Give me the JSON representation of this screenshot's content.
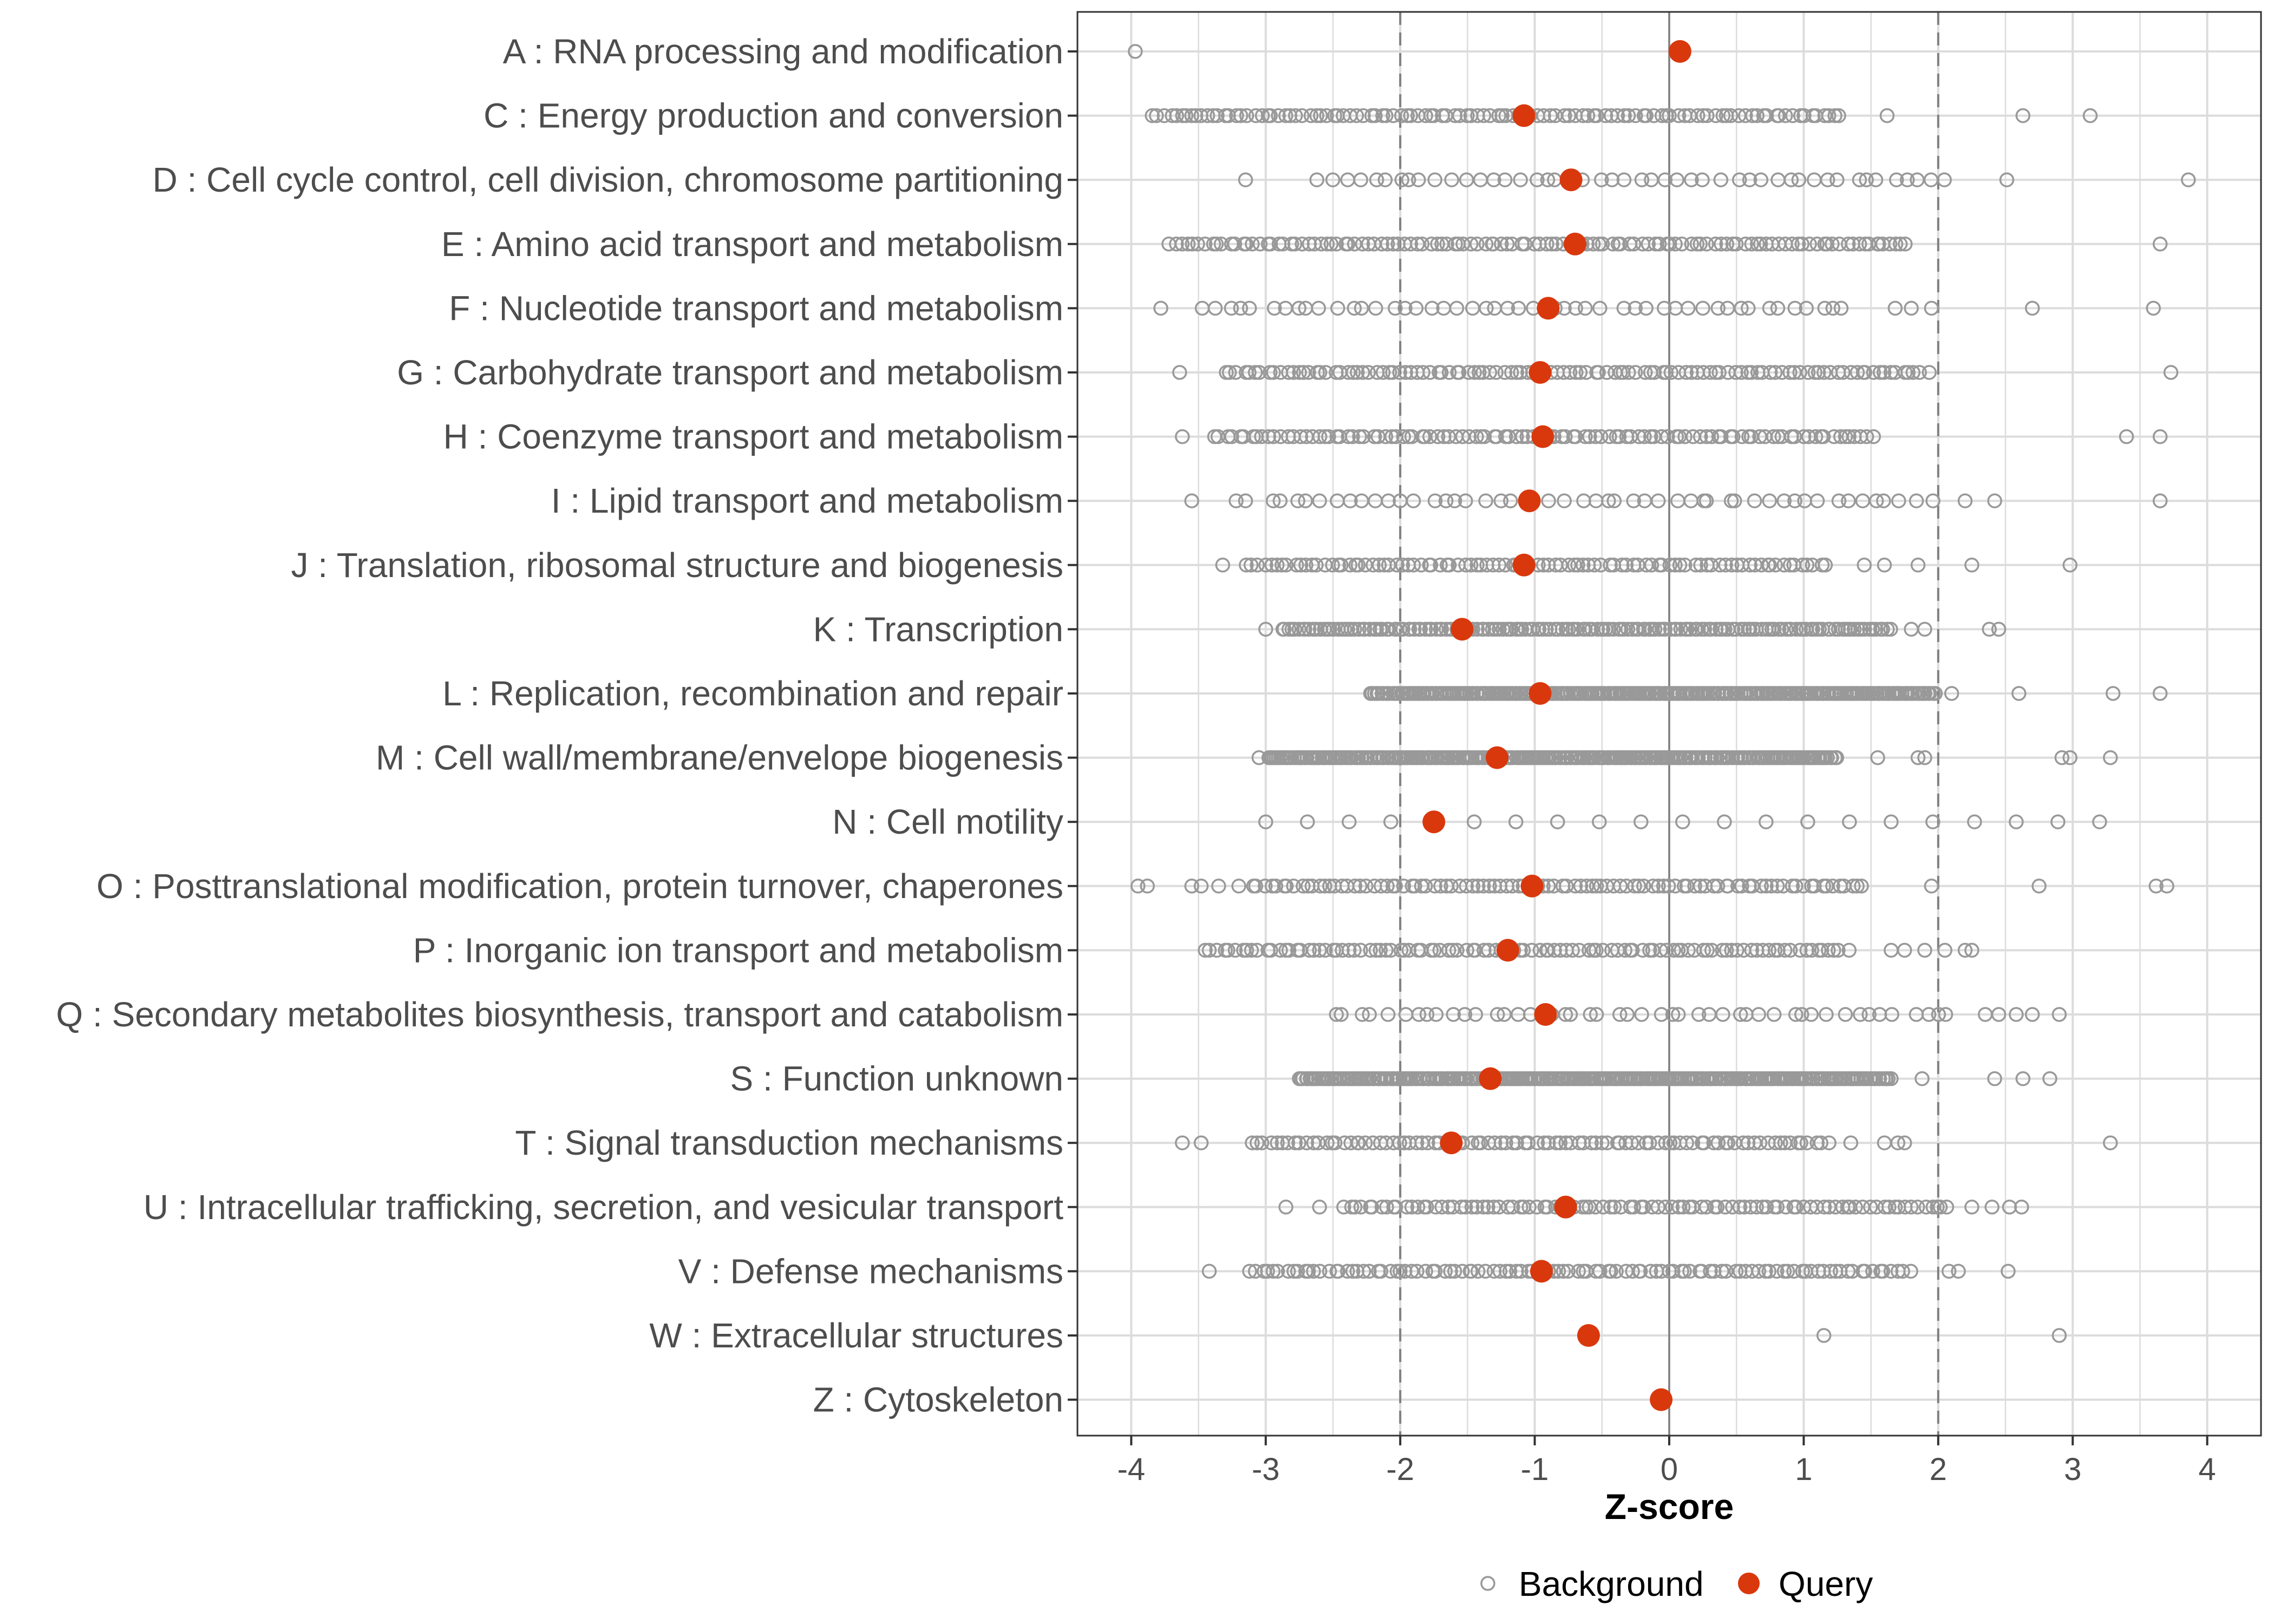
{
  "chart_data": {
    "type": "scatter",
    "title": "",
    "xlabel": "Z-score",
    "ylabel": "",
    "xlim": [
      -4.4,
      4.4
    ],
    "x_ticks": [
      -4,
      -3,
      -2,
      -1,
      0,
      1,
      2,
      3,
      4
    ],
    "x_tick_labels": [
      "-4",
      "-3",
      "-2",
      "-1",
      "0",
      "1",
      "2",
      "3",
      "4"
    ],
    "reference_lines": {
      "solid": [
        0
      ],
      "dashed": [
        -2,
        2
      ]
    },
    "grid": true,
    "legend": {
      "position": "bottom",
      "entries": [
        {
          "name": "Background",
          "marker": "open-circle",
          "color": "#999999"
        },
        {
          "name": "Query",
          "marker": "filled-circle",
          "color": "#d9380d"
        }
      ]
    },
    "colors": {
      "background": "#999999",
      "query": "#d9380d",
      "grid": "#dcdcdc",
      "panel_border": "#333333",
      "reference": "#808080"
    },
    "categories": [
      {
        "label": "A : RNA processing and modification",
        "query": 0.08,
        "background": {
          "density": "single",
          "points": [
            -3.97
          ]
        }
      },
      {
        "label": "C : Energy production and conversion",
        "query": -1.08,
        "background": {
          "density": "medium",
          "min": -3.85,
          "max": 1.32,
          "extra": [
            -3.55,
            1.62,
            2.63,
            3.13
          ]
        }
      },
      {
        "label": "D : Cell cycle control, cell division, chromosome partitioning",
        "query": -0.73,
        "background": {
          "density": "sparse",
          "min": -2.62,
          "max": 2.12,
          "extra": [
            -3.15,
            2.51,
            3.86
          ]
        }
      },
      {
        "label": "E : Amino acid transport and metabolism",
        "query": -0.7,
        "background": {
          "density": "medium",
          "min": -3.72,
          "max": 1.78,
          "extra": [
            1.55,
            3.65
          ]
        }
      },
      {
        "label": "F : Nucleotide transport and metabolism",
        "query": -0.9,
        "background": {
          "density": "sparse",
          "min": -3.48,
          "max": 1.38,
          "extra": [
            -3.78,
            1.68,
            1.8,
            1.95,
            2.7,
            3.6
          ]
        }
      },
      {
        "label": "G : Carbohydrate transport and metabolism",
        "query": -0.96,
        "background": {
          "density": "medium",
          "min": -3.3,
          "max": 1.95,
          "extra": [
            -3.64,
            3.73
          ]
        }
      },
      {
        "label": "H : Coenzyme transport and metabolism",
        "query": -0.94,
        "background": {
          "density": "medium",
          "min": -3.38,
          "max": 1.55,
          "extra": [
            -3.62,
            3.4,
            3.65
          ]
        }
      },
      {
        "label": "I : Lipid transport and metabolism",
        "query": -1.04,
        "background": {
          "density": "sparse",
          "min": -2.98,
          "max": 1.98,
          "extra": [
            -3.55,
            -3.22,
            -3.15,
            2.2,
            2.42,
            3.65
          ]
        }
      },
      {
        "label": "J : Translation, ribosomal structure and biogenesis",
        "query": -1.08,
        "background": {
          "density": "medium",
          "min": -3.15,
          "max": 1.2,
          "extra": [
            -3.32,
            1.45,
            1.6,
            1.85,
            2.25,
            2.98
          ]
        }
      },
      {
        "label": "K : Transcription",
        "query": -1.54,
        "background": {
          "density": "dense",
          "min": -2.88,
          "max": 1.65,
          "extra": [
            -3.0,
            1.8,
            1.9,
            2.38,
            2.45
          ]
        }
      },
      {
        "label": "L : Replication, recombination and repair",
        "query": -0.96,
        "background": {
          "density": "very-dense",
          "min": -2.22,
          "max": 1.98,
          "extra": [
            2.1,
            2.6,
            3.3,
            3.65
          ]
        }
      },
      {
        "label": "M : Cell wall/membrane/envelope biogenesis",
        "query": -1.28,
        "background": {
          "density": "very-dense",
          "min": -2.98,
          "max": 1.25,
          "extra": [
            -3.05,
            1.55,
            1.85,
            1.9,
            2.92,
            2.98,
            3.28
          ]
        }
      },
      {
        "label": "N : Cell motility",
        "query": -1.75,
        "background": {
          "density": "sparse",
          "min": -3.0,
          "max": 3.28,
          "step": 0.31
        }
      },
      {
        "label": "O : Posttranslational modification, protein turnover, chaperones",
        "query": -1.02,
        "background": {
          "density": "medium",
          "min": -3.1,
          "max": 1.48,
          "extra": [
            -3.95,
            -3.88,
            -3.55,
            -3.48,
            -3.35,
            -3.2,
            1.95,
            2.75,
            3.62,
            3.7
          ]
        }
      },
      {
        "label": "P : Inorganic ion transport and metabolism",
        "query": -1.2,
        "background": {
          "density": "medium",
          "min": -3.45,
          "max": 1.35,
          "extra": [
            1.65,
            1.75,
            1.9,
            2.05,
            2.2,
            2.25
          ]
        }
      },
      {
        "label": "Q : Secondary metabolites biosynthesis, transport and catabolism",
        "query": -0.92,
        "background": {
          "density": "sparse",
          "min": -2.5,
          "max": 2.12,
          "extra": [
            2.35,
            2.45,
            2.58,
            2.7,
            2.9
          ]
        }
      },
      {
        "label": "S : Function unknown",
        "query": -1.33,
        "background": {
          "density": "very-dense",
          "min": -2.75,
          "max": 1.65,
          "extra": [
            1.88,
            2.42,
            2.63,
            2.83
          ]
        }
      },
      {
        "label": "T : Signal transduction mechanisms",
        "query": -1.62,
        "background": {
          "density": "medium",
          "min": -3.1,
          "max": 1.2,
          "extra": [
            -3.62,
            -3.48,
            1.35,
            1.6,
            1.7,
            1.75,
            3.28
          ]
        }
      },
      {
        "label": "U : Intracellular trafficking, secretion, and vesicular transport",
        "query": -0.77,
        "background": {
          "density": "medium",
          "min": -2.42,
          "max": 2.12,
          "extra": [
            -2.85,
            -2.6,
            2.25,
            2.4,
            2.53,
            2.62
          ]
        }
      },
      {
        "label": "V : Defense mechanisms",
        "query": -0.95,
        "background": {
          "density": "medium",
          "min": -3.12,
          "max": 1.82,
          "extra": [
            -3.42,
            2.08,
            2.15,
            2.52
          ]
        }
      },
      {
        "label": "W : Extracellular structures",
        "query": -0.6,
        "background": {
          "density": "single",
          "points": [
            1.15,
            2.9
          ]
        }
      },
      {
        "label": "Z : Cytoskeleton",
        "query": -0.06,
        "background": {
          "density": "none",
          "points": []
        }
      }
    ]
  }
}
